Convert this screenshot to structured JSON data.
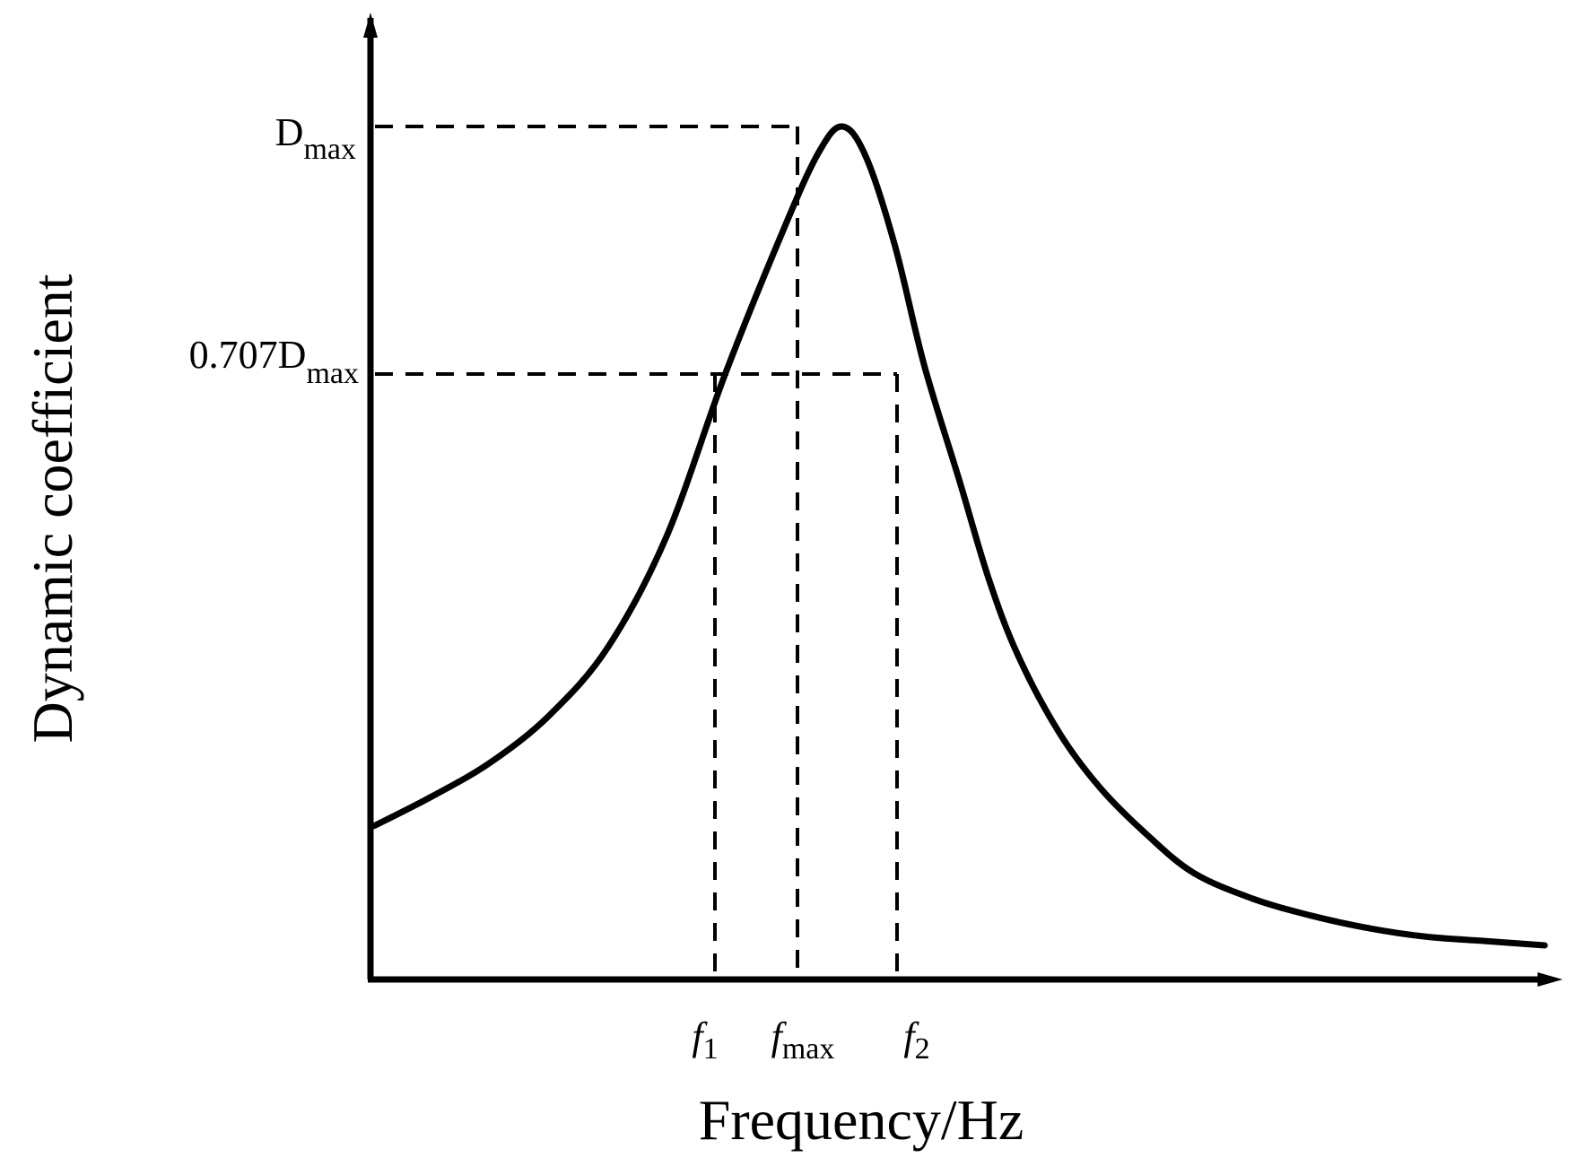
{
  "chart_data": {
    "type": "line",
    "xlabel": "Frequency/Hz",
    "ylabel": "Dynamic coefficient",
    "x_ticks": [
      {
        "key": "f1",
        "main": "f",
        "sub": "1"
      },
      {
        "key": "fmax",
        "main": "f",
        "sub": "max"
      },
      {
        "key": "f2",
        "main": "f",
        "sub": "2"
      }
    ],
    "y_ticks": [
      {
        "key": "dmax",
        "main": "D",
        "sub": "max"
      },
      {
        "key": "d707",
        "main": "0.707D",
        "sub": "max"
      }
    ],
    "grid": false,
    "legend": "none",
    "line_color": "#000000",
    "series": [
      {
        "x": [
          0,
          0.5,
          1.0,
          1.5,
          2.0,
          2.5,
          3.0,
          3.5,
          3.8,
          4.0,
          4.2,
          4.45,
          4.7,
          5.0,
          5.25,
          5.5,
          5.85,
          6.2,
          6.6,
          7.0,
          7.5,
          8.0,
          8.5,
          9.0,
          9.5,
          10.0
        ],
        "y": [
          0.18,
          0.215,
          0.255,
          0.31,
          0.39,
          0.52,
          0.71,
          0.88,
          0.97,
          1.0,
          0.965,
          0.86,
          0.72,
          0.585,
          0.47,
          0.38,
          0.29,
          0.225,
          0.17,
          0.125,
          0.095,
          0.075,
          0.06,
          0.05,
          0.045,
          0.04
        ]
      }
    ]
  }
}
